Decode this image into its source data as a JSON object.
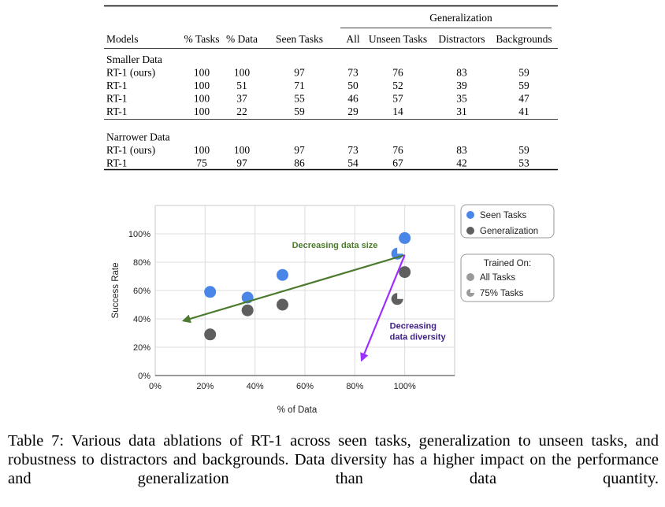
{
  "table": {
    "group_header": "Generalization",
    "columns": [
      "Models",
      "% Tasks",
      "% Data",
      "Seen Tasks",
      "All",
      "Unseen Tasks",
      "Distractors",
      "Backgrounds"
    ],
    "sections": [
      {
        "title": "Smaller Data",
        "rows": [
          [
            "RT-1 (ours)",
            "100",
            "100",
            "97",
            "73",
            "76",
            "83",
            "59"
          ],
          [
            "RT-1",
            "100",
            "51",
            "71",
            "50",
            "52",
            "39",
            "59"
          ],
          [
            "RT-1",
            "100",
            "37",
            "55",
            "46",
            "57",
            "35",
            "47"
          ],
          [
            "RT-1",
            "100",
            "22",
            "59",
            "29",
            "14",
            "31",
            "41"
          ]
        ]
      },
      {
        "title": "Narrower Data",
        "rows": [
          [
            "RT-1 (ours)",
            "100",
            "100",
            "97",
            "73",
            "76",
            "83",
            "59"
          ],
          [
            "RT-1",
            "75",
            "97",
            "86",
            "54",
            "67",
            "42",
            "53"
          ]
        ]
      }
    ]
  },
  "chart_data": {
    "type": "scatter",
    "xlabel": "% of Data",
    "ylabel": "Success Rate",
    "xlim": [
      0,
      120
    ],
    "ylim": [
      0,
      120
    ],
    "x_ticks": [
      0,
      20,
      40,
      60,
      80,
      100
    ],
    "y_ticks": [
      0,
      20,
      40,
      60,
      80,
      100
    ],
    "x_tick_labels": [
      "0%",
      "20%",
      "40%",
      "60%",
      "80%",
      "100%"
    ],
    "y_tick_labels": [
      "0%",
      "20%",
      "40%",
      "60%",
      "80%",
      "100%"
    ],
    "series": [
      {
        "name": "Seen Tasks",
        "color": "#4a86e8",
        "points": [
          {
            "x": 22,
            "y": 59,
            "trained_on": "All Tasks"
          },
          {
            "x": 37,
            "y": 55,
            "trained_on": "All Tasks"
          },
          {
            "x": 51,
            "y": 71,
            "trained_on": "All Tasks"
          },
          {
            "x": 100,
            "y": 97,
            "trained_on": "All Tasks"
          },
          {
            "x": 97,
            "y": 86,
            "trained_on": "75% Tasks"
          }
        ]
      },
      {
        "name": "Generalization",
        "color": "#5f5f5f",
        "points": [
          {
            "x": 22,
            "y": 29,
            "trained_on": "All Tasks"
          },
          {
            "x": 37,
            "y": 46,
            "trained_on": "All Tasks"
          },
          {
            "x": 51,
            "y": 50,
            "trained_on": "All Tasks"
          },
          {
            "x": 100,
            "y": 73,
            "trained_on": "All Tasks"
          },
          {
            "x": 97,
            "y": 54,
            "trained_on": "75% Tasks"
          }
        ]
      }
    ],
    "legend_series": [
      "Seen Tasks",
      "Generalization"
    ],
    "legend_trained_title": "Trained On:",
    "legend_trained_items": [
      "All Tasks",
      "75% Tasks"
    ],
    "annotations": [
      {
        "label": "Decreasing data size",
        "color": "#4c7a2e",
        "from": [
          100,
          85
        ],
        "to": [
          12,
          39
        ],
        "label_at": [
          72,
          90
        ]
      },
      {
        "label_lines": [
          "Decreasing",
          "data diversity"
        ],
        "color": "#9b30ff",
        "from": [
          100,
          85
        ],
        "to": [
          83,
          12
        ],
        "label_at": [
          94,
          33
        ]
      }
    ]
  },
  "caption": "Table 7: Various data ablations of RT-1 across seen tasks, generalization to unseen tasks, and robustness to distractors and backgrounds. Data diversity has a higher impact on the performance and generalization than data quantity."
}
